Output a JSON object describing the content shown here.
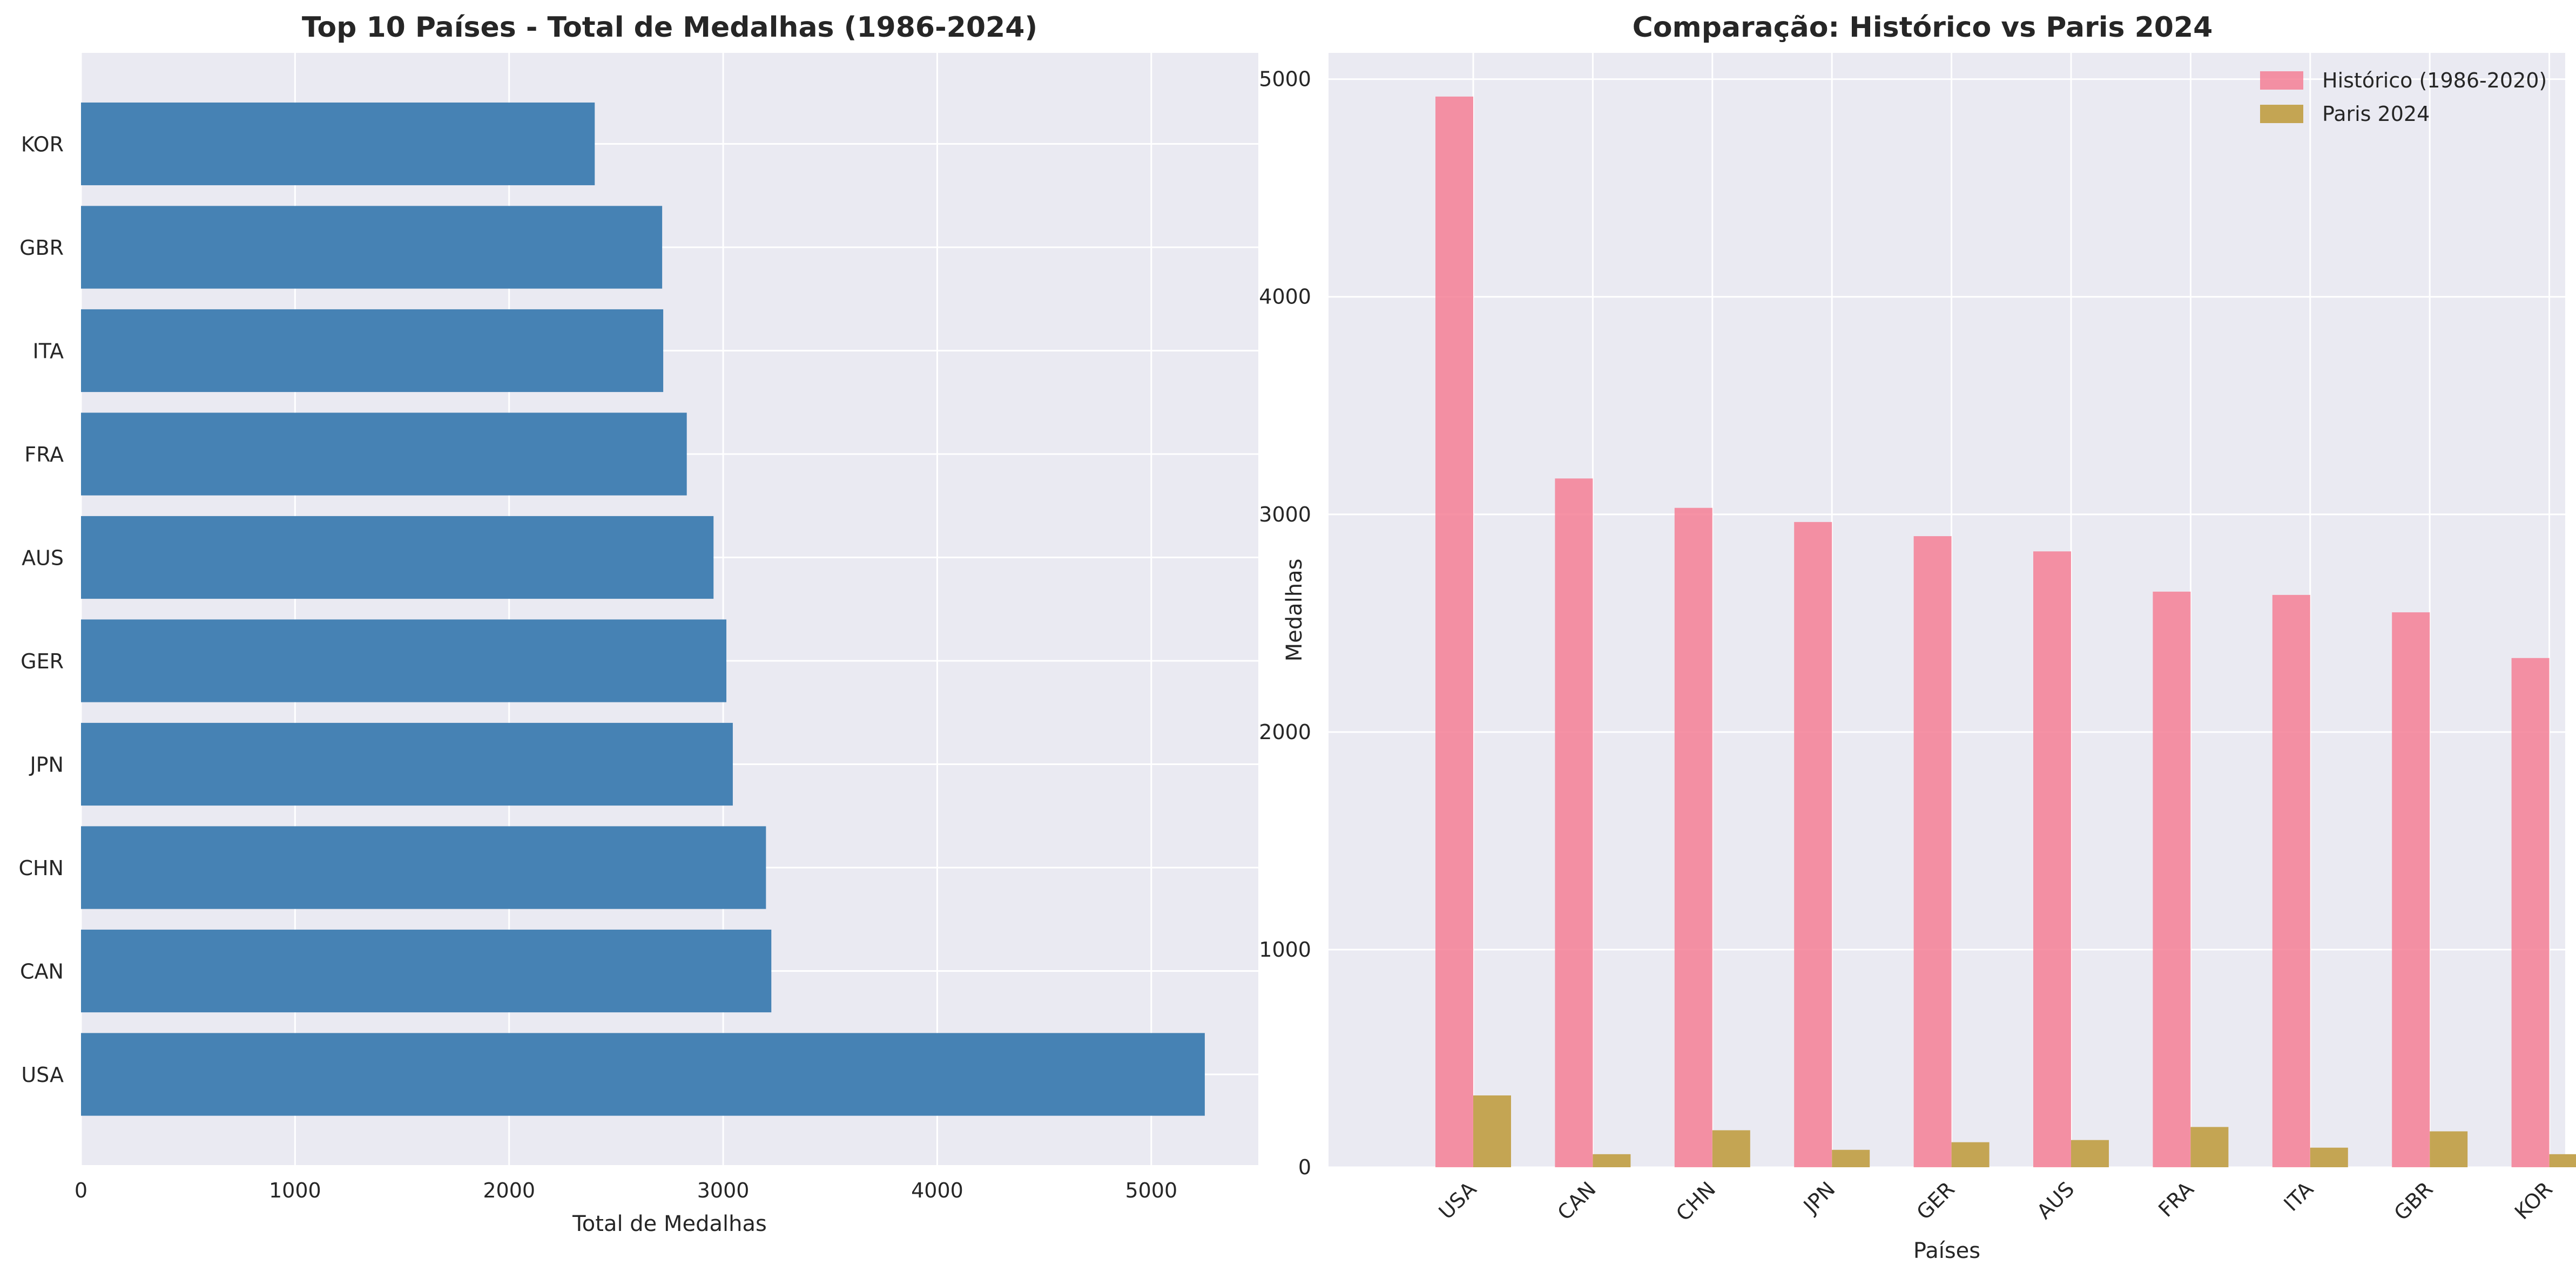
{
  "colors": {
    "axes_bg": "#eaeaf2",
    "grid": "#ffffff",
    "bar_total": "#4682b4",
    "hist": "#f47f95",
    "paris": "#c4a553",
    "text": "#262626"
  },
  "chart_data": [
    {
      "type": "bar",
      "orientation": "horizontal",
      "title": "Top 10 Países - Total de Medalhas (1986-2024)",
      "xlabel": "Total de Medalhas",
      "ylabel": "",
      "categories": [
        "USA",
        "CAN",
        "CHN",
        "JPN",
        "GER",
        "AUS",
        "FRA",
        "ITA",
        "GBR",
        "KOR"
      ],
      "values": [
        5250,
        3225,
        3200,
        3045,
        3015,
        2955,
        2830,
        2720,
        2715,
        2400
      ],
      "xlim": [
        0,
        5500
      ],
      "xticks": [
        0,
        1000,
        2000,
        3000,
        4000,
        5000
      ],
      "grid": true
    },
    {
      "type": "bar",
      "title": "Comparação: Histórico vs Paris 2024",
      "xlabel": "Países",
      "ylabel": "Medalhas",
      "categories": [
        "USA",
        "CAN",
        "CHN",
        "JPN",
        "GER",
        "AUS",
        "FRA",
        "ITA",
        "GBR",
        "KOR"
      ],
      "series": [
        {
          "name": "Histórico (1986-2020)",
          "values": [
            4920,
            3165,
            3030,
            2965,
            2900,
            2830,
            2645,
            2630,
            2550,
            2340
          ]
        },
        {
          "name": "Paris 2024",
          "values": [
            330,
            60,
            170,
            80,
            115,
            125,
            185,
            90,
            165,
            60
          ]
        }
      ],
      "ylim": [
        0,
        5200
      ],
      "yticks": [
        0,
        1000,
        2000,
        3000,
        4000,
        5000
      ],
      "legend_position": "top-right",
      "grid": true
    }
  ]
}
